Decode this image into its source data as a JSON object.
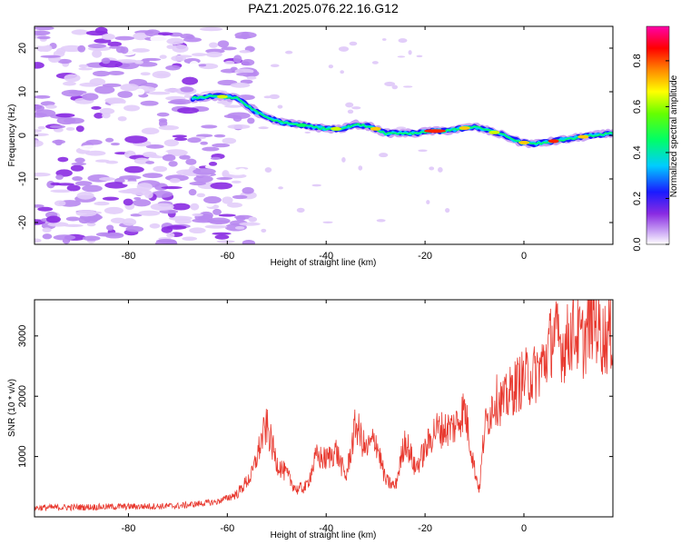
{
  "title": "PAZ1.2025.076.22.16.G12",
  "colors": {
    "snr_line": "#e8392f",
    "colormap": [
      "#ffffff",
      "#e6d4fa",
      "#c9a3f4",
      "#8a2be2",
      "#1a1aff",
      "#00ccff",
      "#00ff66",
      "#ccff00",
      "#ffcc00",
      "#ff3300",
      "#ff00aa"
    ]
  },
  "chart_data": [
    {
      "type": "heatmap",
      "xlabel": "Height of straight line (km)",
      "ylabel": "Frequency (Hz)",
      "xlim": [
        -99,
        18
      ],
      "ylim": [
        -25,
        25
      ],
      "xticks": [
        -80,
        -60,
        -40,
        -20,
        0
      ],
      "yticks": [
        -20,
        -10,
        0,
        10,
        20
      ],
      "colorbar": {
        "label": "Normalized spectral amplitude",
        "range": [
          0,
          0.95
        ],
        "ticks": [
          0.0,
          0.2,
          0.4,
          0.6,
          0.8
        ]
      },
      "ridge": {
        "x": [
          -67,
          -62,
          -58,
          -55,
          -52,
          -49,
          -46,
          -43,
          -40,
          -37,
          -34,
          -31,
          -28,
          -25,
          -22,
          -19,
          -16,
          -13,
          -10,
          -7,
          -4,
          -1,
          2,
          5,
          8,
          11,
          14,
          18
        ],
        "frequency": [
          8.5,
          9,
          8.5,
          6,
          4,
          3,
          2.5,
          2,
          1.5,
          1.5,
          2.5,
          2,
          0.5,
          0.5,
          0.5,
          1,
          1,
          1.5,
          2,
          1,
          0,
          -1.5,
          -2,
          -1.5,
          -1,
          -0.5,
          0,
          0.5
        ]
      }
    },
    {
      "type": "line",
      "xlabel": "Height of straight line (km)",
      "ylabel": "SNR (10 * v/v)",
      "xlim": [
        -99,
        18
      ],
      "ylim": [
        0,
        3600
      ],
      "xticks": [
        -80,
        -60,
        -40,
        -20,
        0
      ],
      "yticks": [
        1000,
        2000,
        3000
      ],
      "envelope": {
        "x": [
          -99,
          -90,
          -80,
          -70,
          -62,
          -58,
          -55,
          -53,
          -52,
          -50,
          -48,
          -46,
          -44,
          -42,
          -40,
          -38,
          -36,
          -34,
          -32,
          -30,
          -28,
          -26,
          -24,
          -22,
          -20,
          -18,
          -16,
          -14,
          -12,
          -10,
          -9,
          -8,
          -6,
          -4,
          -2,
          0,
          2,
          4,
          6,
          8,
          10,
          12,
          14,
          16,
          18
        ],
        "y": [
          150,
          160,
          170,
          180,
          250,
          380,
          700,
          1300,
          1500,
          900,
          700,
          450,
          500,
          1000,
          950,
          1100,
          650,
          1550,
          1100,
          1300,
          600,
          500,
          1300,
          800,
          1100,
          1450,
          1450,
          1500,
          1800,
          800,
          450,
          1450,
          1950,
          1900,
          2150,
          2300,
          2350,
          2550,
          3050,
          2800,
          3100,
          2900,
          3350,
          2950,
          3050
        ]
      }
    }
  ]
}
